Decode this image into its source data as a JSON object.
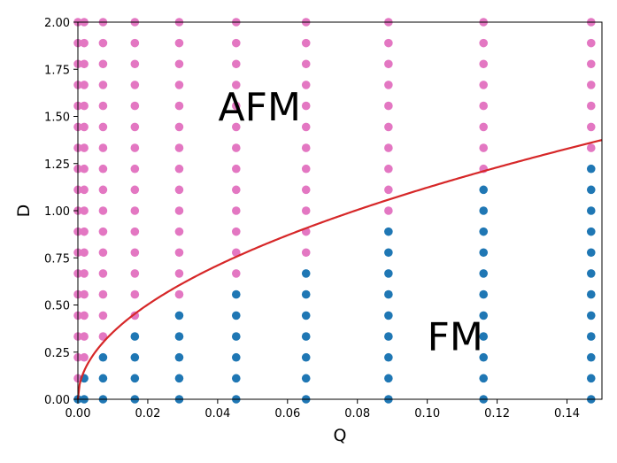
{
  "chart_data": {
    "type": "scatter",
    "xlabel": "Q",
    "ylabel": "D",
    "xlim": [
      0.0,
      0.15
    ],
    "ylim": [
      0.0,
      2.0
    ],
    "xticks": [
      0.0,
      0.02,
      0.04,
      0.06,
      0.08,
      0.1,
      0.12,
      0.14
    ],
    "xtick_labels": [
      "0.00",
      "0.02",
      "0.04",
      "0.06",
      "0.08",
      "0.10",
      "0.12",
      "0.14"
    ],
    "yticks": [
      0.0,
      0.25,
      0.5,
      0.75,
      1.0,
      1.25,
      1.5,
      1.75,
      2.0
    ],
    "ytick_labels": [
      "0.00",
      "0.25",
      "0.50",
      "0.75",
      "1.00",
      "1.25",
      "1.50",
      "1.75",
      "2.00"
    ],
    "grid": false,
    "q_columns": [
      0.0,
      0.0018,
      0.0072,
      0.0163,
      0.029,
      0.0453,
      0.0653,
      0.0889,
      0.1161,
      0.1469
    ],
    "d_rows": [
      0.0,
      0.111,
      0.222,
      0.333,
      0.444,
      0.556,
      0.667,
      0.778,
      0.889,
      1.0,
      1.111,
      1.222,
      1.333,
      1.444,
      1.556,
      1.667,
      1.778,
      1.889,
      2.0
    ],
    "fm_max_row": [
      0,
      1,
      2,
      3,
      4,
      5,
      6,
      8,
      10,
      11
    ],
    "series": [
      {
        "label": "FM",
        "color": "#1f77b4"
      },
      {
        "label": "AFM",
        "color": "#e377c2"
      }
    ],
    "boundary": {
      "color": "#d62728",
      "curve": "D = 3.55 * Q^0.5"
    },
    "annotations": [
      {
        "text": "AFM",
        "x": 0.052,
        "y": 1.55
      },
      {
        "text": "FM",
        "x": 0.108,
        "y": 0.33
      }
    ]
  }
}
